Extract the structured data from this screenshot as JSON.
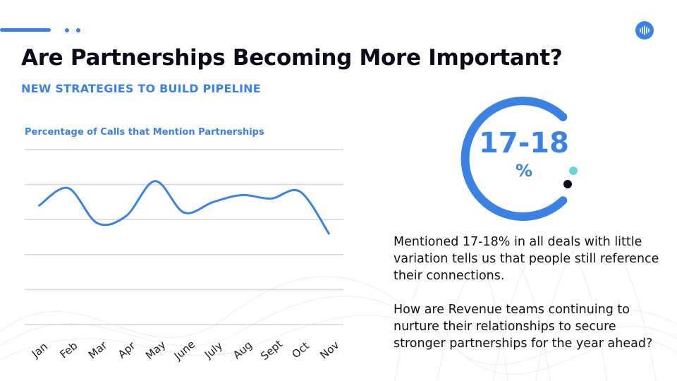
{
  "slide": {
    "title": "Are Partnerships Becoming More Important?",
    "subtitle": "NEW STRATEGIES TO BUILD PIPELINE"
  },
  "stat": {
    "value": "17-18",
    "unit": "%"
  },
  "paragraphs": [
    "Mentioned 17-18% in all deals with little variation tells us that people still reference their connections.",
    "How are Revenue teams continuing to nurture their relationships to secure stronger partnerships for the year ahead?"
  ],
  "colors": {
    "accent": "#3c82e4",
    "title": "#0b0b1a",
    "grid": "#d6d6d6",
    "teal_dot": "#6fd3d8",
    "navy_dot": "#0b0b1a"
  },
  "icons": {
    "logo": "soundwave-logo-icon"
  },
  "chart_data": {
    "type": "line",
    "title": "Percentage of Calls that Mention Partnerships",
    "categories": [
      "Jan",
      "Feb",
      "Mar",
      "Apr",
      "May",
      "June",
      "July",
      "Aug",
      "Sept",
      "Oct",
      "Nov"
    ],
    "series": [
      {
        "values": [
          3.4,
          3.9,
          2.9,
          3.1,
          4.1,
          3.2,
          3.5,
          3.7,
          3.6,
          3.8,
          2.6
        ]
      }
    ],
    "ylim": [
      0,
      5
    ],
    "grid": true,
    "xlabel": "",
    "ylabel": ""
  }
}
